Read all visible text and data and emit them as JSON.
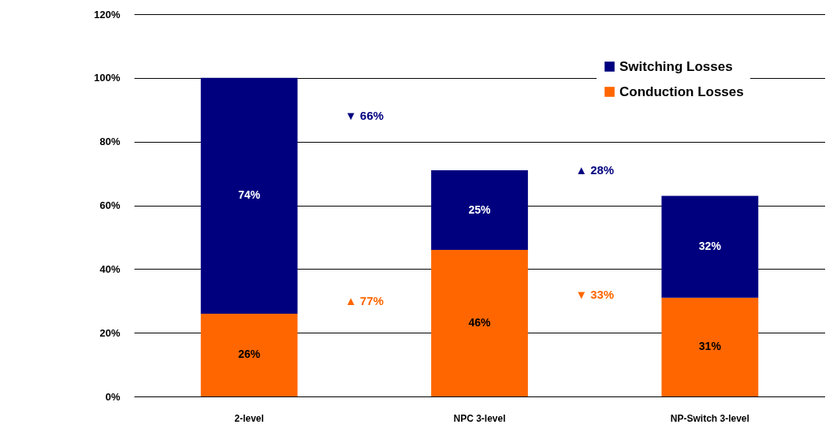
{
  "chart_data": {
    "type": "bar",
    "stacked": true,
    "categories": [
      "2-level",
      "NPC 3-level",
      "NP-Switch 3-level"
    ],
    "series": [
      {
        "name": "Conduction Losses",
        "color": "#ff6600",
        "values": [
          26,
          46,
          31
        ],
        "value_labels": [
          "26%",
          "46%",
          "31%"
        ]
      },
      {
        "name": "Switching Losses",
        "color": "#00007f",
        "values": [
          74,
          25,
          32
        ],
        "value_labels": [
          "74%",
          "25%",
          "32%"
        ]
      }
    ],
    "ylim": [
      0,
      120
    ],
    "yticks": [
      {
        "value": 0,
        "label": "0%"
      },
      {
        "value": 20,
        "label": "20%"
      },
      {
        "value": 40,
        "label": "40%"
      },
      {
        "value": 60,
        "label": "60%"
      },
      {
        "value": 80,
        "label": "80%"
      },
      {
        "value": 100,
        "label": "100%"
      },
      {
        "value": 120,
        "label": "120%"
      }
    ],
    "grid": "y",
    "legend": "top right",
    "annotations": [
      "▼ 66%",
      "▲ 28%",
      "▲ 77%",
      "▼ 33%"
    ]
  }
}
